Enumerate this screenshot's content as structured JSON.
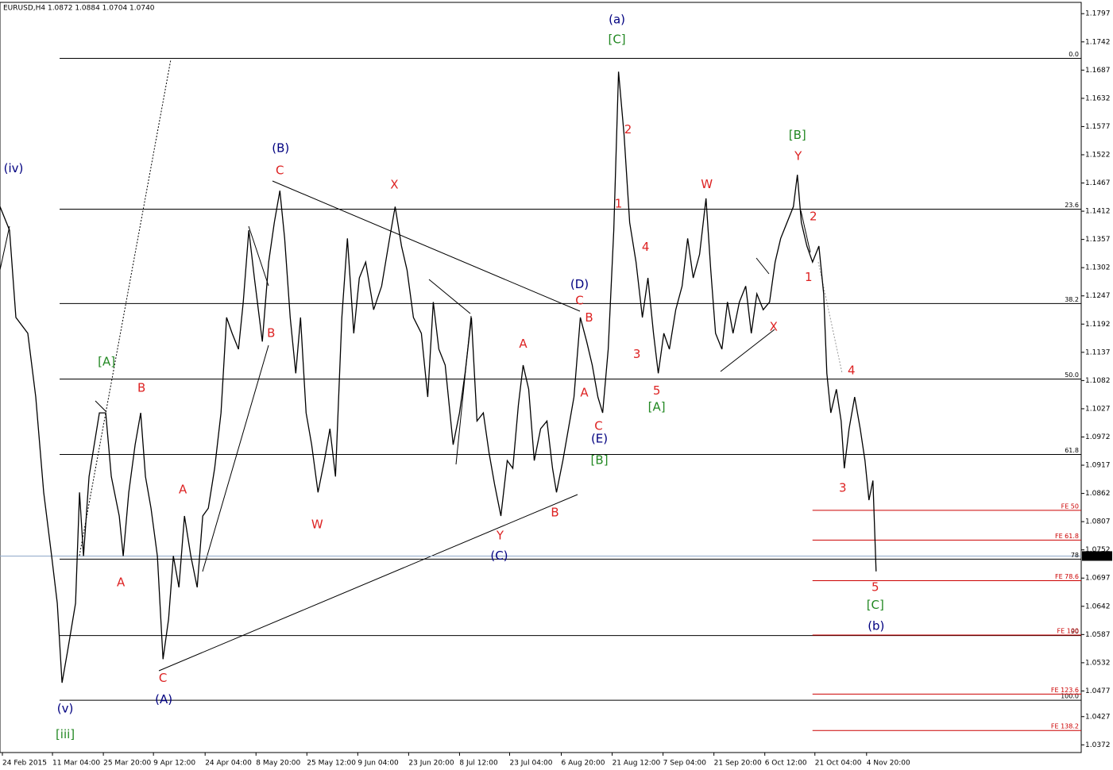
{
  "chart_data": {
    "type": "line",
    "header": "EURUSD,H4  1.0872 1.0884 1.0704 1.0740",
    "color": "#000000",
    "xlim": [
      0,
      1360
    ],
    "ylim": [
      1.0357,
      1.1819
    ],
    "xticks": [
      {
        "value": 3,
        "label": "24 Feb 2015"
      },
      {
        "value": 66,
        "label": "11 Mar 04:00"
      },
      {
        "value": 130,
        "label": "25 Mar 20:00"
      },
      {
        "value": 193,
        "label": "9 Apr 12:00"
      },
      {
        "value": 258,
        "label": "24 Apr 04:00"
      },
      {
        "value": 322,
        "label": "8 May 20:00"
      },
      {
        "value": 386,
        "label": "25 May 12:00"
      },
      {
        "value": 450,
        "label": "9 Jun 04:00"
      },
      {
        "value": 514,
        "label": "23 Jun 20:00"
      },
      {
        "value": 578,
        "label": "8 Jul 12:00"
      },
      {
        "value": 641,
        "label": "23 Jul 04:00"
      },
      {
        "value": 706,
        "label": "6 Aug 20:00"
      },
      {
        "value": 770,
        "label": "21 Aug 12:00"
      },
      {
        "value": 834,
        "label": "7 Sep 04:00"
      },
      {
        "value": 898,
        "label": "21 Sep 20:00"
      },
      {
        "value": 962,
        "label": "6 Oct 12:00"
      },
      {
        "value": 1025,
        "label": "21 Oct 04:00"
      },
      {
        "value": 1090,
        "label": "4 Nov 20:00"
      }
    ],
    "yticks": [
      1.1797,
      1.1742,
      1.1687,
      1.1632,
      1.1577,
      1.1522,
      1.1467,
      1.1412,
      1.1357,
      1.1302,
      1.1247,
      1.1192,
      1.1137,
      1.1082,
      1.1027,
      1.0972,
      1.0917,
      1.0862,
      1.0807,
      1.0752,
      1.0697,
      1.0642,
      1.0587,
      1.0532,
      1.0477,
      1.0427,
      1.0372
    ],
    "x": [
      0,
      12,
      20,
      35,
      45,
      55,
      65,
      72,
      78,
      85,
      95,
      100,
      105,
      112,
      125,
      133,
      140,
      150,
      155,
      162,
      170,
      177,
      183,
      190,
      198,
      205,
      212,
      218,
      225,
      232,
      240,
      248,
      255,
      262,
      270,
      278,
      285,
      292,
      300,
      306,
      313,
      320,
      330,
      338,
      345,
      352,
      358,
      365,
      372,
      378,
      385,
      392,
      400,
      408,
      415,
      422,
      430,
      437,
      445,
      452,
      460,
      470,
      480,
      490,
      497,
      505,
      512,
      520,
      530,
      538,
      545,
      552,
      560,
      570,
      578,
      585,
      593,
      600,
      608,
      615,
      622,
      630,
      638,
      645,
      652,
      658,
      665,
      672,
      680,
      688,
      695,
      700,
      708,
      715,
      722,
      730,
      738,
      745,
      752,
      758,
      765,
      772,
      778,
      785,
      792,
      800,
      808,
      815,
      822,
      828,
      835,
      842,
      850,
      858,
      865,
      872,
      880,
      888,
      894,
      900,
      908,
      915,
      922,
      930,
      938,
      945,
      952,
      960,
      968,
      975,
      982,
      990,
      998,
      1003,
      1008,
      1015,
      1022,
      1030,
      1036,
      1040,
      1045,
      1052,
      1058,
      1062,
      1068,
      1075,
      1082,
      1088,
      1093,
      1098,
      1102
    ],
    "values": [
      1.1421,
      1.1375,
      1.1205,
      1.1174,
      1.105,
      1.0864,
      1.074,
      1.0648,
      1.0493,
      1.0555,
      1.0648,
      1.0864,
      1.074,
      1.0895,
      1.1019,
      1.1019,
      1.0895,
      1.0818,
      1.074,
      1.0864,
      1.0957,
      1.1019,
      1.0895,
      1.0833,
      1.074,
      1.0539,
      1.0617,
      1.074,
      1.0679,
      1.0818,
      1.074,
      1.0679,
      1.0818,
      1.0833,
      1.0911,
      1.1019,
      1.1205,
      1.1174,
      1.1143,
      1.1235,
      1.1375,
      1.1282,
      1.1158,
      1.1313,
      1.139,
      1.1452,
      1.1359,
      1.1205,
      1.1096,
      1.1205,
      1.1019,
      1.0957,
      1.0864,
      1.0926,
      1.0988,
      1.0895,
      1.1205,
      1.1359,
      1.1174,
      1.1282,
      1.1313,
      1.122,
      1.1266,
      1.1359,
      1.1421,
      1.1344,
      1.1297,
      1.1205,
      1.1174,
      1.105,
      1.1235,
      1.1143,
      1.1112,
      1.0957,
      1.1019,
      1.1096,
      1.1205,
      1.1003,
      1.1019,
      1.0942,
      1.088,
      1.0818,
      1.0926,
      1.0911,
      1.1034,
      1.1112,
      1.1065,
      1.0926,
      1.0988,
      1.1003,
      1.0911,
      1.0864,
      1.0926,
      1.0988,
      1.105,
      1.1205,
      1.1158,
      1.1112,
      1.105,
      1.1019,
      1.1143,
      1.1375,
      1.1684,
      1.156,
      1.139,
      1.1313,
      1.1205,
      1.1282,
      1.1174,
      1.1096,
      1.1174,
      1.1143,
      1.122,
      1.1266,
      1.1359,
      1.1282,
      1.1328,
      1.1437,
      1.1297,
      1.1174,
      1.1143,
      1.1235,
      1.1174,
      1.1235,
      1.1266,
      1.1174,
      1.1251,
      1.122,
      1.1235,
      1.1313,
      1.1359,
      1.139,
      1.1421,
      1.1483,
      1.139,
      1.1344,
      1.1313,
      1.1344,
      1.1251,
      1.1096,
      1.1019,
      1.1065,
      1.1003,
      1.0911,
      1.0988,
      1.105,
      1.0988,
      1.0926,
      1.0849,
      1.0887,
      1.071
    ],
    "last_price": {
      "value": 1.074,
      "label": "1.0740"
    },
    "fib_levels": [
      {
        "value": 1.171,
        "label": "0.0"
      },
      {
        "value": 1.1416,
        "label": "23.6"
      },
      {
        "value": 1.1232,
        "label": "38.2"
      },
      {
        "value": 1.1085,
        "label": "50.0"
      },
      {
        "value": 1.0938,
        "label": "61.8"
      },
      {
        "value": 1.0734,
        "label": "78"
      },
      {
        "value": 1.0585,
        "label": "90"
      },
      {
        "value": 1.0459,
        "label": "100.0"
      }
    ],
    "fe_levels": [
      {
        "value": 1.0829,
        "label": "FE 50"
      },
      {
        "value": 1.0771,
        "label": "FE 61.8"
      },
      {
        "value": 1.0692,
        "label": "FE 78.6"
      },
      {
        "value": 1.0586,
        "label": "FE 100"
      },
      {
        "value": 1.0471,
        "label": "FE 123.6"
      },
      {
        "value": 1.04,
        "label": "FE 138.2"
      }
    ],
    "annotations": [
      {
        "text": "(a)",
        "x": 776,
        "y": 1.1785,
        "color": "#000080"
      },
      {
        "text": "(iv)",
        "x": 17,
        "y": 1.1495,
        "color": "#000080"
      },
      {
        "text": "(v)",
        "x": 82,
        "y": 1.0442,
        "color": "#000080"
      },
      {
        "text": "(B)",
        "x": 353,
        "y": 1.1534,
        "color": "#000080"
      },
      {
        "text": "(D)",
        "x": 729,
        "y": 1.1269,
        "color": "#000080"
      },
      {
        "text": "(E)",
        "x": 754,
        "y": 1.0968,
        "color": "#000080"
      },
      {
        "text": "(C)",
        "x": 628,
        "y": 1.074,
        "color": "#000080"
      },
      {
        "text": "(A)",
        "x": 206,
        "y": 1.046,
        "color": "#000080"
      },
      {
        "text": "(b)",
        "x": 1102,
        "y": 1.0603,
        "color": "#000080"
      },
      {
        "text": "[C]",
        "x": 776,
        "y": 1.1746,
        "color": "#228822"
      },
      {
        "text": "[A]",
        "x": 134,
        "y": 1.1118,
        "color": "#228822"
      },
      {
        "text": "[B]",
        "x": 1003,
        "y": 1.156,
        "color": "#228822"
      },
      {
        "text": "[A]",
        "x": 826,
        "y": 1.103,
        "color": "#228822"
      },
      {
        "text": "[B]",
        "x": 754,
        "y": 1.0926,
        "color": "#228822"
      },
      {
        "text": "[iii]",
        "x": 82,
        "y": 1.0392,
        "color": "#228822"
      },
      {
        "text": "[C]",
        "x": 1101,
        "y": 1.0644,
        "color": "#228822"
      },
      {
        "text": "C",
        "x": 352,
        "y": 1.1491,
        "color": "#dd2222"
      },
      {
        "text": "X",
        "x": 496,
        "y": 1.1463,
        "color": "#dd2222"
      },
      {
        "text": "W",
        "x": 889,
        "y": 1.1464,
        "color": "#dd2222"
      },
      {
        "text": "Y",
        "x": 1004,
        "y": 1.1519,
        "color": "#dd2222"
      },
      {
        "text": "2",
        "x": 790,
        "y": 1.1571,
        "color": "#dd2222"
      },
      {
        "text": "1",
        "x": 778,
        "y": 1.1426,
        "color": "#dd2222"
      },
      {
        "text": "4",
        "x": 812,
        "y": 1.1342,
        "color": "#dd2222"
      },
      {
        "text": "3",
        "x": 801,
        "y": 1.1133,
        "color": "#dd2222"
      },
      {
        "text": "5",
        "x": 826,
        "y": 1.1062,
        "color": "#dd2222"
      },
      {
        "text": "2",
        "x": 1023,
        "y": 1.1401,
        "color": "#dd2222"
      },
      {
        "text": "1",
        "x": 1017,
        "y": 1.1283,
        "color": "#dd2222"
      },
      {
        "text": "X",
        "x": 973,
        "y": 1.1186,
        "color": "#dd2222"
      },
      {
        "text": "B",
        "x": 178,
        "y": 1.1067,
        "color": "#dd2222"
      },
      {
        "text": "A",
        "x": 230,
        "y": 1.0869,
        "color": "#dd2222"
      },
      {
        "text": "A",
        "x": 152,
        "y": 1.0688,
        "color": "#dd2222"
      },
      {
        "text": "C",
        "x": 205,
        "y": 1.0502,
        "color": "#dd2222"
      },
      {
        "text": "B",
        "x": 341,
        "y": 1.1174,
        "color": "#dd2222"
      },
      {
        "text": "W",
        "x": 399,
        "y": 1.0801,
        "color": "#dd2222"
      },
      {
        "text": "A",
        "x": 658,
        "y": 1.1153,
        "color": "#dd2222"
      },
      {
        "text": "Y",
        "x": 629,
        "y": 1.0779,
        "color": "#dd2222"
      },
      {
        "text": "B",
        "x": 698,
        "y": 1.0824,
        "color": "#dd2222"
      },
      {
        "text": "C",
        "x": 729,
        "y": 1.1237,
        "color": "#dd2222"
      },
      {
        "text": "B",
        "x": 741,
        "y": 1.1204,
        "color": "#dd2222"
      },
      {
        "text": "A",
        "x": 735,
        "y": 1.1058,
        "color": "#dd2222"
      },
      {
        "text": "C",
        "x": 753,
        "y": 1.0993,
        "color": "#dd2222"
      },
      {
        "text": "4",
        "x": 1071,
        "y": 1.1101,
        "color": "#dd2222"
      },
      {
        "text": "3",
        "x": 1060,
        "y": 1.0872,
        "color": "#dd2222"
      },
      {
        "text": "5",
        "x": 1101,
        "y": 1.0679,
        "color": "#dd2222"
      }
    ]
  }
}
